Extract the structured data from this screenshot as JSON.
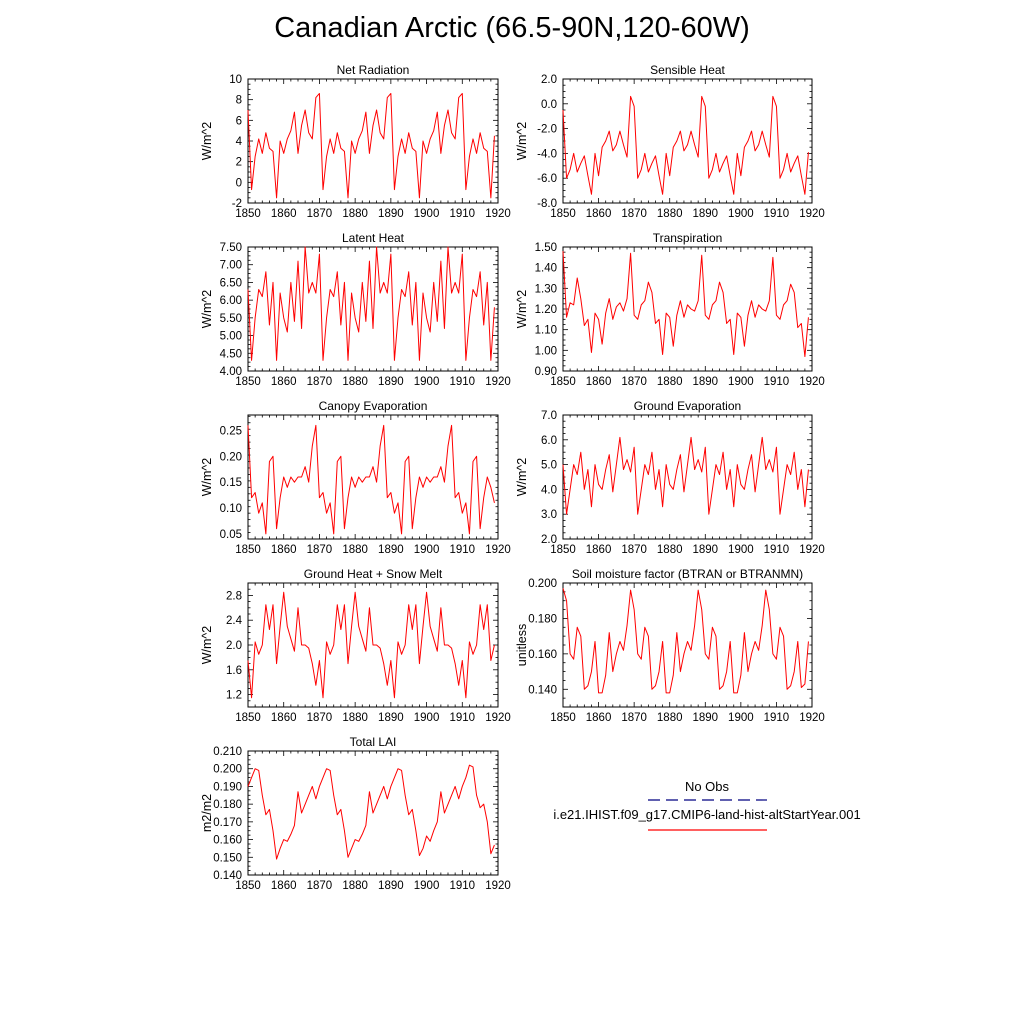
{
  "title": "Canadian Arctic (66.5-90N,120-60W)",
  "colors": {
    "model_line": "#ff0000",
    "obs_line": "#000080",
    "axis": "#000000",
    "background": "#ffffff"
  },
  "legend": {
    "obs_label": "No Obs",
    "model_label": "i.e21.IHIST.f09_g17.CMIP6-land-hist-altStartYear.001"
  },
  "chart_data": [
    {
      "type": "line",
      "title": "Net Radiation",
      "ylabel": "W/m^2",
      "xlim": [
        1850,
        1920
      ],
      "ylim": [
        -2,
        10
      ],
      "xticks": [
        "1850",
        "1860",
        "1870",
        "1880",
        "1890",
        "1900",
        "1910",
        "1920"
      ],
      "yticks": [
        "-2",
        "0",
        "2",
        "4",
        "6",
        "8",
        "10"
      ],
      "series": [
        {
          "x_start": 1850,
          "values": [
            7.0,
            -0.7,
            2.5,
            4.2,
            2.8,
            4.8,
            3.3,
            3.0,
            -1.5,
            4.0,
            2.8,
            4.2,
            5.0,
            6.8,
            2.8,
            5.5,
            7.0,
            4.8,
            4.2,
            8.2,
            8.6,
            -0.7,
            2.5,
            4.2,
            2.8,
            4.8,
            3.3,
            3.0,
            -1.5,
            4.0,
            2.8,
            4.2,
            5.0,
            6.8,
            2.8,
            5.5,
            7.0,
            4.8,
            4.2,
            8.2,
            8.6,
            -0.7,
            2.5,
            4.2,
            2.8,
            4.8,
            3.3,
            3.0,
            -1.5,
            4.0,
            2.8,
            4.2,
            5.0,
            6.8,
            2.8,
            5.5,
            7.0,
            4.8,
            4.2,
            8.2,
            8.6,
            -0.7,
            2.5,
            4.2,
            2.8,
            4.8,
            3.3,
            3.0,
            -1.5,
            4.5
          ]
        }
      ]
    },
    {
      "type": "line",
      "title": "Sensible Heat",
      "ylabel": "W/m^2",
      "xlim": [
        1850,
        1920
      ],
      "ylim": [
        -8,
        2
      ],
      "xticks": [
        "1850",
        "1860",
        "1870",
        "1880",
        "1890",
        "1900",
        "1910",
        "1920"
      ],
      "yticks": [
        "-8.0",
        "-6.0",
        "-4.0",
        "-2.0",
        "0.0",
        "2.0"
      ],
      "series": [
        {
          "x_start": 1850,
          "values": [
            -0.5,
            -6.0,
            -5.3,
            -4.0,
            -5.5,
            -4.8,
            -4.2,
            -5.8,
            -7.3,
            -4.0,
            -5.8,
            -3.5,
            -3.0,
            -2.2,
            -3.8,
            -3.3,
            -2.2,
            -3.3,
            -4.3,
            0.6,
            -0.2,
            -6.0,
            -5.3,
            -4.0,
            -5.5,
            -4.8,
            -4.2,
            -5.8,
            -7.3,
            -4.0,
            -5.8,
            -3.5,
            -3.0,
            -2.2,
            -3.8,
            -3.3,
            -2.2,
            -3.3,
            -4.3,
            0.6,
            -0.2,
            -6.0,
            -5.3,
            -4.0,
            -5.5,
            -4.8,
            -4.2,
            -5.8,
            -7.3,
            -4.0,
            -5.8,
            -3.5,
            -3.0,
            -2.2,
            -3.8,
            -3.3,
            -2.2,
            -3.3,
            -4.3,
            0.6,
            -0.2,
            -6.0,
            -5.3,
            -4.0,
            -5.5,
            -4.8,
            -4.2,
            -5.8,
            -7.3,
            -3.9
          ]
        }
      ]
    },
    {
      "type": "line",
      "title": "Latent Heat",
      "ylabel": "W/m^2",
      "xlim": [
        1850,
        1920
      ],
      "ylim": [
        4.0,
        7.5
      ],
      "xticks": [
        "1850",
        "1860",
        "1870",
        "1880",
        "1890",
        "1900",
        "1910",
        "1920"
      ],
      "yticks": [
        "4.00",
        "4.50",
        "5.00",
        "5.50",
        "6.00",
        "6.50",
        "7.00",
        "7.50"
      ],
      "series": [
        {
          "x_start": 1850,
          "values": [
            6.3,
            4.3,
            5.5,
            6.3,
            6.1,
            6.8,
            5.3,
            6.5,
            4.3,
            6.2,
            5.5,
            5.1,
            6.5,
            5.4,
            7.1,
            5.2,
            7.5,
            6.2,
            6.5,
            6.2,
            7.3,
            4.3,
            5.5,
            6.3,
            6.1,
            6.8,
            5.3,
            6.5,
            4.3,
            6.2,
            5.5,
            5.1,
            6.5,
            5.4,
            7.1,
            5.2,
            7.5,
            6.2,
            6.5,
            6.2,
            7.3,
            4.3,
            5.5,
            6.3,
            6.1,
            6.8,
            5.3,
            6.5,
            4.3,
            6.2,
            5.5,
            5.1,
            6.5,
            5.4,
            7.1,
            5.2,
            7.5,
            6.2,
            6.5,
            6.2,
            7.3,
            4.3,
            5.5,
            6.3,
            6.1,
            6.8,
            5.3,
            6.5,
            4.3,
            5.8
          ]
        }
      ]
    },
    {
      "type": "line",
      "title": "Transpiration",
      "ylabel": "W/m^2",
      "xlim": [
        1850,
        1920
      ],
      "ylim": [
        0.9,
        1.5
      ],
      "xticks": [
        "1850",
        "1860",
        "1870",
        "1880",
        "1890",
        "1900",
        "1910",
        "1920"
      ],
      "yticks": [
        "0.90",
        "1.00",
        "1.10",
        "1.20",
        "1.30",
        "1.40",
        "1.50"
      ],
      "series": [
        {
          "x_start": 1850,
          "values": [
            1.48,
            1.16,
            1.23,
            1.22,
            1.35,
            1.25,
            1.12,
            1.15,
            0.99,
            1.18,
            1.15,
            1.03,
            1.18,
            1.25,
            1.15,
            1.21,
            1.23,
            1.19,
            1.25,
            1.47,
            1.17,
            1.15,
            1.22,
            1.24,
            1.33,
            1.28,
            1.13,
            1.15,
            0.98,
            1.18,
            1.16,
            1.02,
            1.17,
            1.24,
            1.16,
            1.22,
            1.2,
            1.19,
            1.24,
            1.46,
            1.17,
            1.15,
            1.22,
            1.24,
            1.33,
            1.28,
            1.13,
            1.15,
            0.98,
            1.18,
            1.16,
            1.02,
            1.17,
            1.24,
            1.16,
            1.22,
            1.2,
            1.19,
            1.24,
            1.45,
            1.17,
            1.15,
            1.22,
            1.24,
            1.32,
            1.28,
            1.11,
            1.13,
            0.97,
            1.16
          ]
        }
      ]
    },
    {
      "type": "line",
      "title": "Canopy Evaporation",
      "ylabel": "W/m^2",
      "xlim": [
        1850,
        1920
      ],
      "ylim": [
        0.04,
        0.28
      ],
      "xticks": [
        "1850",
        "1860",
        "1870",
        "1880",
        "1890",
        "1900",
        "1910",
        "1920"
      ],
      "yticks": [
        "0.05",
        "0.10",
        "0.15",
        "0.20",
        "0.25"
      ],
      "series": [
        {
          "x_start": 1850,
          "values": [
            0.26,
            0.12,
            0.13,
            0.09,
            0.11,
            0.05,
            0.19,
            0.2,
            0.06,
            0.12,
            0.16,
            0.14,
            0.16,
            0.15,
            0.16,
            0.16,
            0.18,
            0.15,
            0.22,
            0.26,
            0.12,
            0.13,
            0.09,
            0.11,
            0.05,
            0.19,
            0.2,
            0.06,
            0.12,
            0.16,
            0.14,
            0.16,
            0.15,
            0.16,
            0.16,
            0.18,
            0.15,
            0.22,
            0.26,
            0.12,
            0.13,
            0.09,
            0.11,
            0.05,
            0.19,
            0.2,
            0.06,
            0.12,
            0.16,
            0.14,
            0.16,
            0.15,
            0.16,
            0.16,
            0.18,
            0.15,
            0.22,
            0.26,
            0.12,
            0.13,
            0.09,
            0.11,
            0.05,
            0.19,
            0.2,
            0.06,
            0.12,
            0.16,
            0.14,
            0.11
          ]
        }
      ]
    },
    {
      "type": "line",
      "title": "Ground Evaporation",
      "ylabel": "W/m^2",
      "xlim": [
        1850,
        1920
      ],
      "ylim": [
        2.0,
        7.0
      ],
      "xticks": [
        "1850",
        "1860",
        "1870",
        "1880",
        "1890",
        "1900",
        "1910",
        "1920"
      ],
      "yticks": [
        "2.0",
        "3.0",
        "4.0",
        "5.0",
        "6.0",
        "7.0"
      ],
      "series": [
        {
          "x_start": 1850,
          "values": [
            5.0,
            3.0,
            4.0,
            5.0,
            4.6,
            5.5,
            4.0,
            4.8,
            3.3,
            5.0,
            4.2,
            4.0,
            4.8,
            5.4,
            3.9,
            5.0,
            6.1,
            4.8,
            5.2,
            4.7,
            5.7,
            3.0,
            4.0,
            5.0,
            4.6,
            5.5,
            4.0,
            4.8,
            3.3,
            5.0,
            4.2,
            4.0,
            4.8,
            5.4,
            3.9,
            5.0,
            6.1,
            4.8,
            5.2,
            4.7,
            5.7,
            3.0,
            4.0,
            5.0,
            4.6,
            5.5,
            4.0,
            4.8,
            3.3,
            5.0,
            4.2,
            4.0,
            4.8,
            5.4,
            3.9,
            5.0,
            6.1,
            4.8,
            5.2,
            4.7,
            5.7,
            3.0,
            4.0,
            5.0,
            4.6,
            5.5,
            4.0,
            4.8,
            3.3,
            4.8
          ]
        }
      ]
    },
    {
      "type": "line",
      "title": "Ground Heat + Snow Melt",
      "ylabel": "W/m^2",
      "xlim": [
        1850,
        1920
      ],
      "ylim": [
        1.0,
        3.0
      ],
      "xticks": [
        "1850",
        "1860",
        "1870",
        "1880",
        "1890",
        "1900",
        "1910",
        "1920"
      ],
      "yticks": [
        "1.2",
        "1.6",
        "2.0",
        "2.4",
        "2.8"
      ],
      "series": [
        {
          "x_start": 1850,
          "values": [
            1.75,
            1.15,
            2.05,
            1.85,
            2.0,
            2.65,
            2.25,
            2.65,
            1.7,
            2.3,
            2.85,
            2.3,
            2.1,
            1.9,
            2.6,
            2.0,
            2.0,
            1.95,
            1.7,
            1.35,
            1.75,
            1.15,
            2.05,
            1.85,
            2.0,
            2.65,
            2.25,
            2.65,
            1.7,
            2.3,
            2.85,
            2.3,
            2.1,
            1.9,
            2.6,
            2.0,
            2.0,
            1.95,
            1.7,
            1.35,
            1.75,
            1.15,
            2.05,
            1.85,
            2.0,
            2.65,
            2.25,
            2.65,
            1.7,
            2.3,
            2.85,
            2.3,
            2.1,
            1.9,
            2.6,
            2.0,
            2.0,
            1.95,
            1.7,
            1.35,
            1.75,
            1.15,
            2.05,
            1.85,
            2.0,
            2.65,
            2.25,
            2.65,
            1.75,
            2.0
          ]
        }
      ]
    },
    {
      "type": "line",
      "title": "Soil moisture factor (BTRAN or BTRANMN)",
      "ylabel": "unitless",
      "xlim": [
        1850,
        1920
      ],
      "ylim": [
        0.13,
        0.2
      ],
      "xticks": [
        "1850",
        "1860",
        "1870",
        "1880",
        "1890",
        "1900",
        "1910",
        "1920"
      ],
      "yticks": [
        "0.140",
        "0.160",
        "0.180",
        "0.200"
      ],
      "series": [
        {
          "x_start": 1850,
          "values": [
            0.197,
            0.19,
            0.16,
            0.157,
            0.175,
            0.17,
            0.14,
            0.142,
            0.15,
            0.167,
            0.138,
            0.138,
            0.148,
            0.172,
            0.15,
            0.16,
            0.167,
            0.162,
            0.176,
            0.196,
            0.185,
            0.16,
            0.157,
            0.175,
            0.17,
            0.14,
            0.142,
            0.15,
            0.167,
            0.138,
            0.138,
            0.148,
            0.172,
            0.15,
            0.16,
            0.167,
            0.162,
            0.176,
            0.196,
            0.185,
            0.16,
            0.157,
            0.175,
            0.17,
            0.14,
            0.142,
            0.15,
            0.167,
            0.138,
            0.138,
            0.148,
            0.172,
            0.15,
            0.16,
            0.167,
            0.162,
            0.176,
            0.196,
            0.185,
            0.16,
            0.157,
            0.175,
            0.17,
            0.14,
            0.142,
            0.15,
            0.167,
            0.141,
            0.143,
            0.167
          ]
        }
      ]
    },
    {
      "type": "line",
      "title": "Total LAI",
      "ylabel": "m2/m2",
      "xlim": [
        1850,
        1920
      ],
      "ylim": [
        0.14,
        0.21
      ],
      "xticks": [
        "1850",
        "1860",
        "1870",
        "1880",
        "1890",
        "1900",
        "1910",
        "1920"
      ],
      "yticks": [
        "0.140",
        "0.150",
        "0.160",
        "0.170",
        "0.180",
        "0.190",
        "0.200",
        "0.210"
      ],
      "series": [
        {
          "x_start": 1850,
          "values": [
            0.19,
            0.195,
            0.2,
            0.199,
            0.185,
            0.174,
            0.177,
            0.165,
            0.149,
            0.155,
            0.16,
            0.159,
            0.163,
            0.168,
            0.187,
            0.175,
            0.18,
            0.185,
            0.19,
            0.183,
            0.19,
            0.195,
            0.2,
            0.199,
            0.185,
            0.174,
            0.177,
            0.165,
            0.15,
            0.155,
            0.16,
            0.159,
            0.163,
            0.168,
            0.187,
            0.175,
            0.18,
            0.185,
            0.19,
            0.183,
            0.19,
            0.195,
            0.2,
            0.199,
            0.185,
            0.174,
            0.177,
            0.165,
            0.151,
            0.155,
            0.162,
            0.159,
            0.165,
            0.17,
            0.187,
            0.175,
            0.18,
            0.185,
            0.19,
            0.183,
            0.19,
            0.195,
            0.202,
            0.201,
            0.185,
            0.178,
            0.18,
            0.17,
            0.152,
            0.157
          ]
        }
      ]
    }
  ]
}
